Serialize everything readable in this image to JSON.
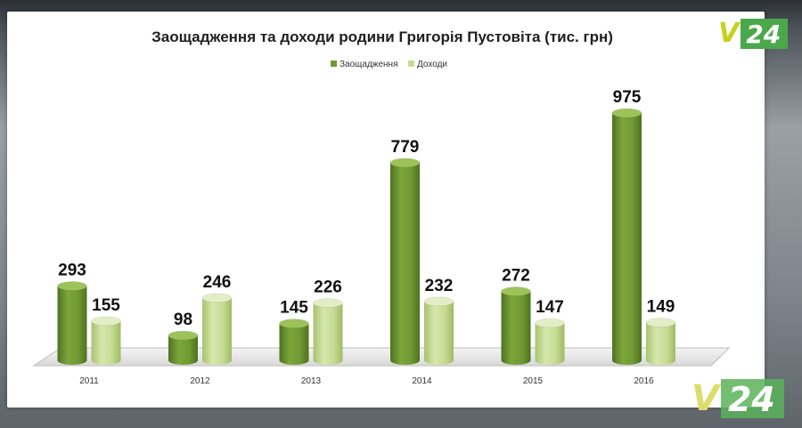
{
  "colors": {
    "savings": "#6f9a32",
    "savings_dark": "#4e7222",
    "savings_light": "#9ec25a",
    "income": "#c6dc93",
    "income_dark": "#9fbb64",
    "income_light": "#e3eec6"
  },
  "logo": {
    "brand_v": "V",
    "brand_num": "24"
  },
  "chart_data": {
    "type": "bar",
    "title": "Заощадження та доходи родини Григорія Пустовіта (тис. грн)",
    "legend_position": "top-center",
    "categories": [
      "2011",
      "2012",
      "2013",
      "2014",
      "2015",
      "2016"
    ],
    "series": [
      {
        "name": "Заощадження",
        "values": [
          293,
          98,
          145,
          779,
          272,
          975
        ]
      },
      {
        "name": "Доходи",
        "values": [
          155,
          246,
          226,
          232,
          147,
          149
        ]
      }
    ],
    "ylim": [
      0,
      1000
    ],
    "grid": false,
    "data_labels": true
  }
}
